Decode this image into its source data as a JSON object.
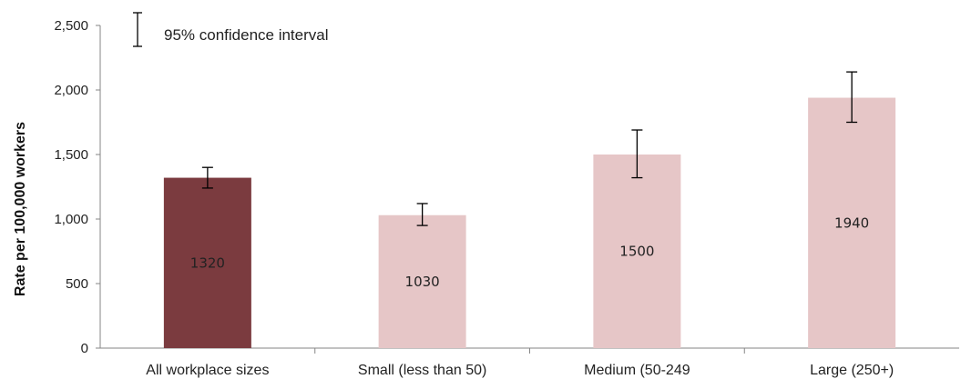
{
  "chart_data": {
    "type": "bar",
    "title": "",
    "xlabel": "",
    "ylabel": "Rate per 100,000 workers",
    "ylim": [
      0,
      2500
    ],
    "yticks": [
      0,
      500,
      1000,
      1500,
      2000,
      2500
    ],
    "ytick_labels": [
      "0",
      "500",
      "1,000",
      "1,500",
      "2,000",
      "2,500"
    ],
    "grid": false,
    "categories": [
      "All workplace sizes",
      "Small (less than 50)",
      "Medium (50-249",
      "Large (250+)"
    ],
    "values": [
      1320,
      1030,
      1500,
      1940
    ],
    "value_labels": [
      "1320",
      "1030",
      "1500",
      "1940"
    ],
    "error_low": [
      1240,
      950,
      1320,
      1750
    ],
    "error_high": [
      1400,
      1120,
      1690,
      2140
    ],
    "colors": [
      "#7b3b3f",
      "#e6c6c7",
      "#e6c6c7",
      "#e6c6c7"
    ],
    "legend": {
      "label": "95% confidence interval",
      "placement": "top-left"
    }
  }
}
